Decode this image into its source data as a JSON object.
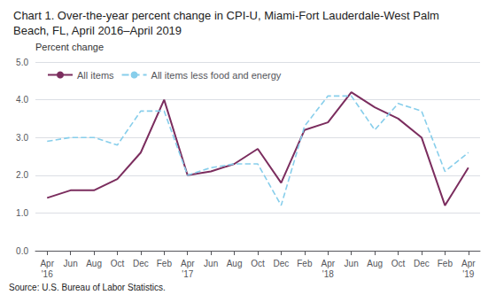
{
  "chart_data": {
    "type": "line",
    "title": "Chart 1. Over-the-year percent change in CPI-U, Miami-Fort Lauderdale-West Palm\nBeach, FL, April 2016–April 2019",
    "ylabel": "Percent change",
    "annotations": [
      "Source: U.S. Bureau of Labor Statistics."
    ],
    "categories": [
      "Apr\n'16",
      "Jun",
      "Aug",
      "Oct",
      "Dec",
      "Feb",
      "Apr\n'17",
      "Jun",
      "Aug",
      "Oct",
      "Dec",
      "Feb",
      "Apr\n'18",
      "Jun",
      "Aug",
      "Oct",
      "Dec",
      "Feb",
      "Apr\n'19"
    ],
    "series": [
      {
        "name": "All items",
        "color": "#7B2D5E",
        "line_style": "solid",
        "values": [
          1.4,
          1.6,
          1.6,
          1.9,
          2.6,
          4.0,
          2.0,
          2.1,
          2.3,
          2.7,
          1.8,
          3.2,
          3.4,
          4.2,
          3.8,
          3.5,
          3.0,
          1.2,
          2.2
        ]
      },
      {
        "name": "All items less food and energy",
        "color": "#87CEEB",
        "line_style": "dashed",
        "values": [
          2.9,
          3.0,
          3.0,
          2.8,
          3.7,
          3.7,
          2.0,
          2.2,
          2.3,
          2.3,
          1.2,
          3.3,
          4.1,
          4.1,
          3.2,
          3.9,
          3.7,
          2.1,
          2.6
        ]
      }
    ],
    "ylim": [
      0.0,
      5.0
    ],
    "yticks": [
      {
        "value": 0,
        "label": "0.0"
      },
      {
        "value": 1,
        "label": "1.0"
      },
      {
        "value": 2,
        "label": "2.0"
      },
      {
        "value": 3,
        "label": "3.0"
      },
      {
        "value": 4,
        "label": "4.0"
      },
      {
        "value": 5,
        "label": "5.0"
      }
    ],
    "grid": true,
    "legend": "upper left"
  }
}
